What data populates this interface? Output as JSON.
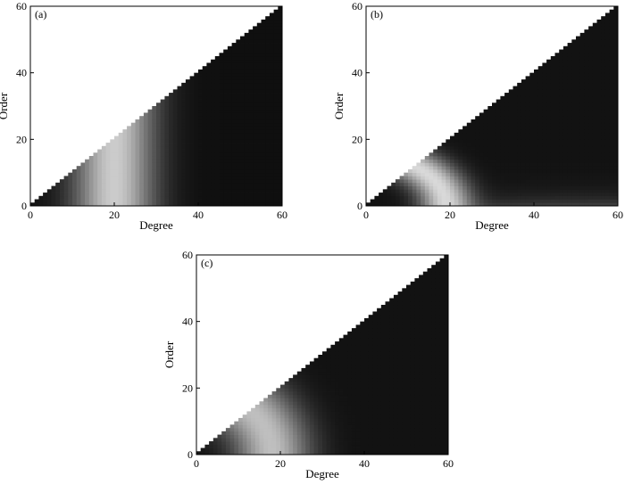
{
  "chart_data": [
    {
      "type": "heatmap",
      "panel_label": "(a)",
      "xlabel": "Degree",
      "ylabel": "Order",
      "xlim": [
        0,
        60
      ],
      "ylim": [
        0,
        60
      ],
      "x_ticks": [
        "0",
        "20",
        "40",
        "60"
      ],
      "y_ticks": [
        "0",
        "20",
        "40",
        "60"
      ],
      "domain": "order <= degree",
      "colormap": "grayscale (black = low, white = high)",
      "intensity_profile": "varies with degree only; bright band centered near degree 20, dark at degree 0 and degree >= 40"
    },
    {
      "type": "heatmap",
      "panel_label": "(b)",
      "xlabel": "Degree",
      "ylabel": "Order",
      "xlim": [
        0,
        60
      ],
      "ylim": [
        0,
        60
      ],
      "x_ticks": [
        "0",
        "20",
        "40",
        "60"
      ],
      "y_ticks": [
        "0",
        "20",
        "40",
        "60"
      ],
      "domain": "order <= degree",
      "colormap": "grayscale (black = low, white = high)",
      "intensity_profile": "bright thin arc of radius about 20 in degree-order space, extending along low orders to degree 60"
    },
    {
      "type": "heatmap",
      "panel_label": "(c)",
      "xlabel": "Degree",
      "ylabel": "Order",
      "xlim": [
        0,
        60
      ],
      "ylim": [
        0,
        60
      ],
      "x_ticks": [
        "0",
        "20",
        "40",
        "60"
      ],
      "y_ticks": [
        "0",
        "20",
        "40",
        "60"
      ],
      "domain": "order <= degree",
      "colormap": "grayscale (black = low, white = high)",
      "intensity_profile": "bright arc of radius about 18 in degree-order space, broader falloff than (b)"
    }
  ]
}
